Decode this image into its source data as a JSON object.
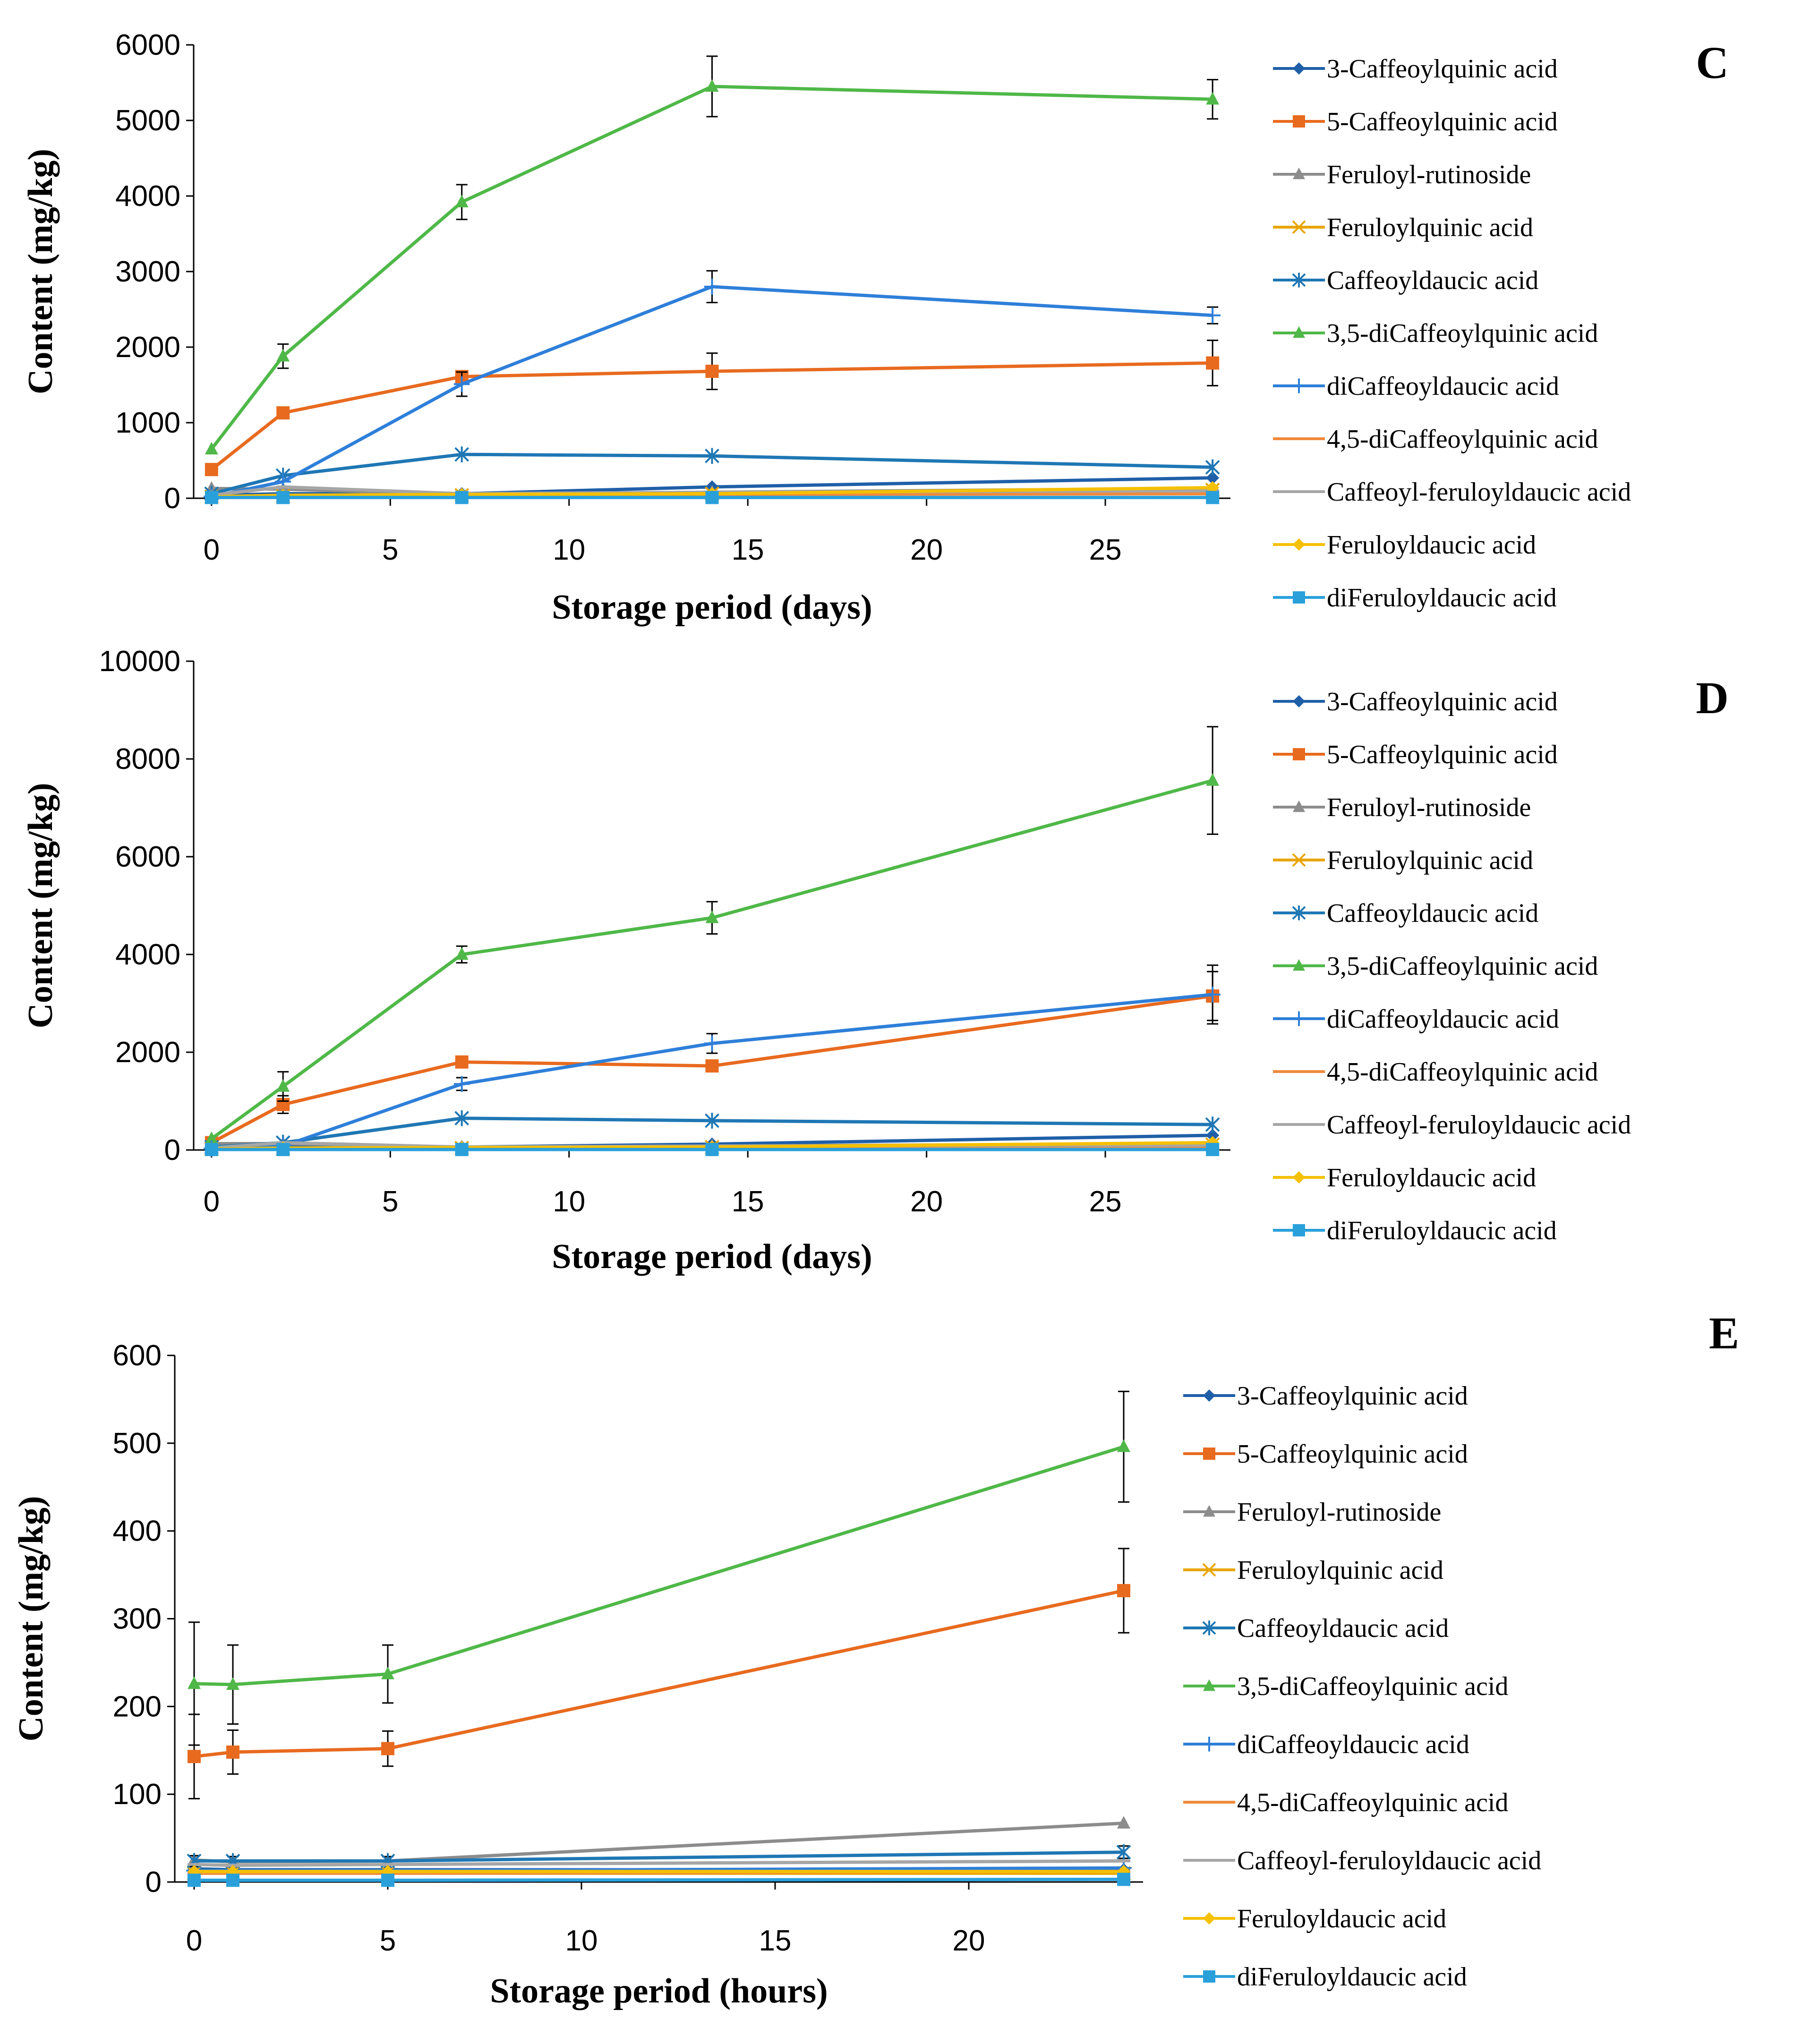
{
  "chart_data": [
    {
      "type": "line",
      "panel": "C",
      "xlabel": "Storage period (days)",
      "ylabel": "Content (mg/kg)",
      "xlim": [
        -0.5,
        28.5
      ],
      "ylim": [
        0,
        6000
      ],
      "xticks": [
        0,
        5,
        10,
        15,
        20,
        25
      ],
      "yticks": [
        0,
        1000,
        2000,
        3000,
        4000,
        5000,
        6000
      ],
      "x": [
        0,
        2,
        7,
        14,
        28
      ],
      "series": [
        {
          "name": "3-Caffeoylquinic acid",
          "color": "#1f5fa8",
          "marker": "diamond",
          "values": [
            40,
            60,
            60,
            150,
            270
          ],
          "errors": [
            0,
            0,
            0,
            0,
            0
          ]
        },
        {
          "name": "5-Caffeoylquinic acid",
          "color": "#e86a1f",
          "marker": "square",
          "values": [
            380,
            1130,
            1610,
            1680,
            1790
          ],
          "errors": [
            0,
            0,
            0,
            240,
            300
          ]
        },
        {
          "name": "Feruloyl-rutinoside",
          "color": "#8c8c8c",
          "marker": "triangle",
          "values": [
            130,
            120,
            50,
            80,
            130
          ],
          "errors": [
            0,
            0,
            0,
            0,
            0
          ]
        },
        {
          "name": "Feruloylquinic acid",
          "color": "#e8a500",
          "marker": "x",
          "values": [
            20,
            30,
            40,
            60,
            110
          ],
          "errors": [
            0,
            0,
            0,
            0,
            0
          ]
        },
        {
          "name": "Caffeoyldaucic acid",
          "color": "#1f77b4",
          "marker": "star",
          "values": [
            60,
            300,
            580,
            560,
            410
          ],
          "errors": [
            0,
            0,
            0,
            0,
            0
          ]
        },
        {
          "name": "3,5-diCaffeoylquinic acid",
          "color": "#4fb848",
          "marker": "triangle",
          "values": [
            650,
            1880,
            3920,
            5450,
            5280
          ],
          "errors": [
            0,
            160,
            230,
            400,
            260
          ]
        },
        {
          "name": "diCaffeoyldaucic acid",
          "color": "#2e7fd9",
          "marker": "plus",
          "values": [
            20,
            220,
            1510,
            2800,
            2420
          ],
          "errors": [
            0,
            0,
            160,
            210,
            110
          ]
        },
        {
          "name": "4,5-diCaffeoylquinic acid",
          "color": "#f08a3c",
          "marker": "dash",
          "values": [
            20,
            30,
            40,
            50,
            60
          ],
          "errors": [
            0,
            0,
            0,
            0,
            0
          ]
        },
        {
          "name": "Caffeoyl-feruloyldaucic acid",
          "color": "#a6a6a6",
          "marker": "dash",
          "values": [
            40,
            150,
            60,
            80,
            100
          ],
          "errors": [
            0,
            0,
            0,
            0,
            0
          ]
        },
        {
          "name": "Feruloyldaucic acid",
          "color": "#f5c000",
          "marker": "diamond",
          "values": [
            20,
            40,
            50,
            60,
            140
          ],
          "errors": [
            0,
            0,
            0,
            0,
            0
          ]
        },
        {
          "name": "diFeruloyldaucic acid",
          "color": "#2aa0db",
          "marker": "square",
          "values": [
            10,
            10,
            10,
            10,
            10
          ],
          "errors": [
            0,
            0,
            0,
            0,
            0
          ]
        }
      ]
    },
    {
      "type": "line",
      "panel": "D",
      "xlabel": "Storage period (days)",
      "ylabel": "Content (mg/kg)",
      "xlim": [
        -0.5,
        28.5
      ],
      "ylim": [
        0,
        10000
      ],
      "xticks": [
        0,
        5,
        10,
        15,
        20,
        25
      ],
      "yticks": [
        0,
        2000,
        4000,
        6000,
        8000,
        10000
      ],
      "x": [
        0,
        2,
        7,
        14,
        28
      ],
      "series": [
        {
          "name": "3-Caffeoylquinic acid",
          "color": "#1f5fa8",
          "marker": "diamond",
          "values": [
            40,
            60,
            60,
            120,
            300
          ],
          "errors": [
            0,
            0,
            0,
            0,
            0
          ]
        },
        {
          "name": "5-Caffeoylquinic acid",
          "color": "#e86a1f",
          "marker": "square",
          "values": [
            150,
            930,
            1800,
            1720,
            3150
          ],
          "errors": [
            0,
            180,
            0,
            0,
            500
          ]
        },
        {
          "name": "Feruloyl-rutinoside",
          "color": "#8c8c8c",
          "marker": "triangle",
          "values": [
            130,
            130,
            60,
            80,
            130
          ],
          "errors": [
            0,
            0,
            0,
            0,
            0
          ]
        },
        {
          "name": "Feruloylquinic acid",
          "color": "#e8a500",
          "marker": "x",
          "values": [
            20,
            30,
            40,
            60,
            110
          ],
          "errors": [
            0,
            0,
            0,
            0,
            0
          ]
        },
        {
          "name": "Caffeoyldaucic acid",
          "color": "#1f77b4",
          "marker": "star",
          "values": [
            60,
            150,
            650,
            600,
            520
          ],
          "errors": [
            0,
            0,
            0,
            0,
            0
          ]
        },
        {
          "name": "3,5-diCaffeoylquinic acid",
          "color": "#4fb848",
          "marker": "triangle",
          "values": [
            230,
            1300,
            4000,
            4750,
            7560
          ],
          "errors": [
            0,
            300,
            170,
            330,
            1100
          ]
        },
        {
          "name": "diCaffeoyldaucic acid",
          "color": "#2e7fd9",
          "marker": "plus",
          "values": [
            30,
            80,
            1350,
            2180,
            3180
          ],
          "errors": [
            0,
            0,
            130,
            200,
            600
          ]
        },
        {
          "name": "4,5-diCaffeoylquinic acid",
          "color": "#f08a3c",
          "marker": "dash",
          "values": [
            20,
            30,
            40,
            50,
            60
          ],
          "errors": [
            0,
            0,
            0,
            0,
            0
          ]
        },
        {
          "name": "Caffeoyl-feruloyldaucic acid",
          "color": "#a6a6a6",
          "marker": "dash",
          "values": [
            40,
            150,
            60,
            80,
            100
          ],
          "errors": [
            0,
            0,
            0,
            0,
            0
          ]
        },
        {
          "name": "Feruloyldaucic acid",
          "color": "#f5c000",
          "marker": "diamond",
          "values": [
            20,
            40,
            50,
            60,
            150
          ],
          "errors": [
            0,
            0,
            0,
            0,
            0
          ]
        },
        {
          "name": "diFeruloyldaucic acid",
          "color": "#2aa0db",
          "marker": "square",
          "values": [
            10,
            10,
            10,
            10,
            10
          ],
          "errors": [
            0,
            0,
            0,
            0,
            0
          ]
        }
      ]
    },
    {
      "type": "line",
      "panel": "E",
      "xlabel": "Storage period (hours)",
      "ylabel": "Content (mg/kg)",
      "xlim": [
        -0.5,
        24.5
      ],
      "ylim": [
        0,
        600
      ],
      "xticks": [
        0,
        5,
        10,
        15,
        20
      ],
      "yticks": [
        0,
        100,
        200,
        300,
        400,
        500,
        600
      ],
      "x": [
        0,
        1,
        5,
        24
      ],
      "series": [
        {
          "name": "3-Caffeoylquinic acid",
          "color": "#1f5fa8",
          "marker": "diamond",
          "values": [
            15,
            14,
            14,
            14
          ],
          "errors": [
            0,
            0,
            0,
            0
          ]
        },
        {
          "name": "5-Caffeoylquinic acid",
          "color": "#e86a1f",
          "marker": "square",
          "values": [
            143,
            148,
            152,
            332
          ],
          "errors": [
            48,
            25,
            20,
            48
          ]
        },
        {
          "name": "Feruloyl-rutinoside",
          "color": "#8c8c8c",
          "marker": "triangle",
          "values": [
            25,
            23,
            24,
            67
          ],
          "errors": [
            0,
            0,
            0,
            0
          ]
        },
        {
          "name": "Feruloylquinic acid",
          "color": "#e8a500",
          "marker": "x",
          "values": [
            10,
            10,
            10,
            10
          ],
          "errors": [
            0,
            0,
            0,
            0
          ]
        },
        {
          "name": "Caffeoyldaucic acid",
          "color": "#1f77b4",
          "marker": "star",
          "values": [
            24,
            24,
            24,
            34
          ],
          "errors": [
            6,
            5,
            5,
            7
          ]
        },
        {
          "name": "3,5-diCaffeoylquinic acid",
          "color": "#4fb848",
          "marker": "triangle",
          "values": [
            226,
            225,
            237,
            496
          ],
          "errors": [
            70,
            45,
            33,
            63
          ]
        },
        {
          "name": "diCaffeoyldaucic acid",
          "color": "#2e7fd9",
          "marker": "plus",
          "values": [
            13,
            13,
            13,
            16
          ],
          "errors": [
            0,
            0,
            0,
            0
          ]
        },
        {
          "name": "4,5-diCaffeoylquinic acid",
          "color": "#f08a3c",
          "marker": "dash",
          "values": [
            10,
            10,
            10,
            12
          ],
          "errors": [
            0,
            0,
            0,
            0
          ]
        },
        {
          "name": "Caffeoyl-feruloyldaucic acid",
          "color": "#a6a6a6",
          "marker": "dash",
          "values": [
            20,
            19,
            20,
            24
          ],
          "errors": [
            0,
            0,
            0,
            0
          ]
        },
        {
          "name": "Feruloyldaucic acid",
          "color": "#f5c000",
          "marker": "diamond",
          "values": [
            12,
            12,
            12,
            12
          ],
          "errors": [
            0,
            0,
            0,
            0
          ]
        },
        {
          "name": "diFeruloyldaucic acid",
          "color": "#2aa0db",
          "marker": "square",
          "values": [
            2,
            2,
            2,
            3
          ],
          "errors": [
            0,
            0,
            0,
            0
          ]
        }
      ]
    }
  ]
}
